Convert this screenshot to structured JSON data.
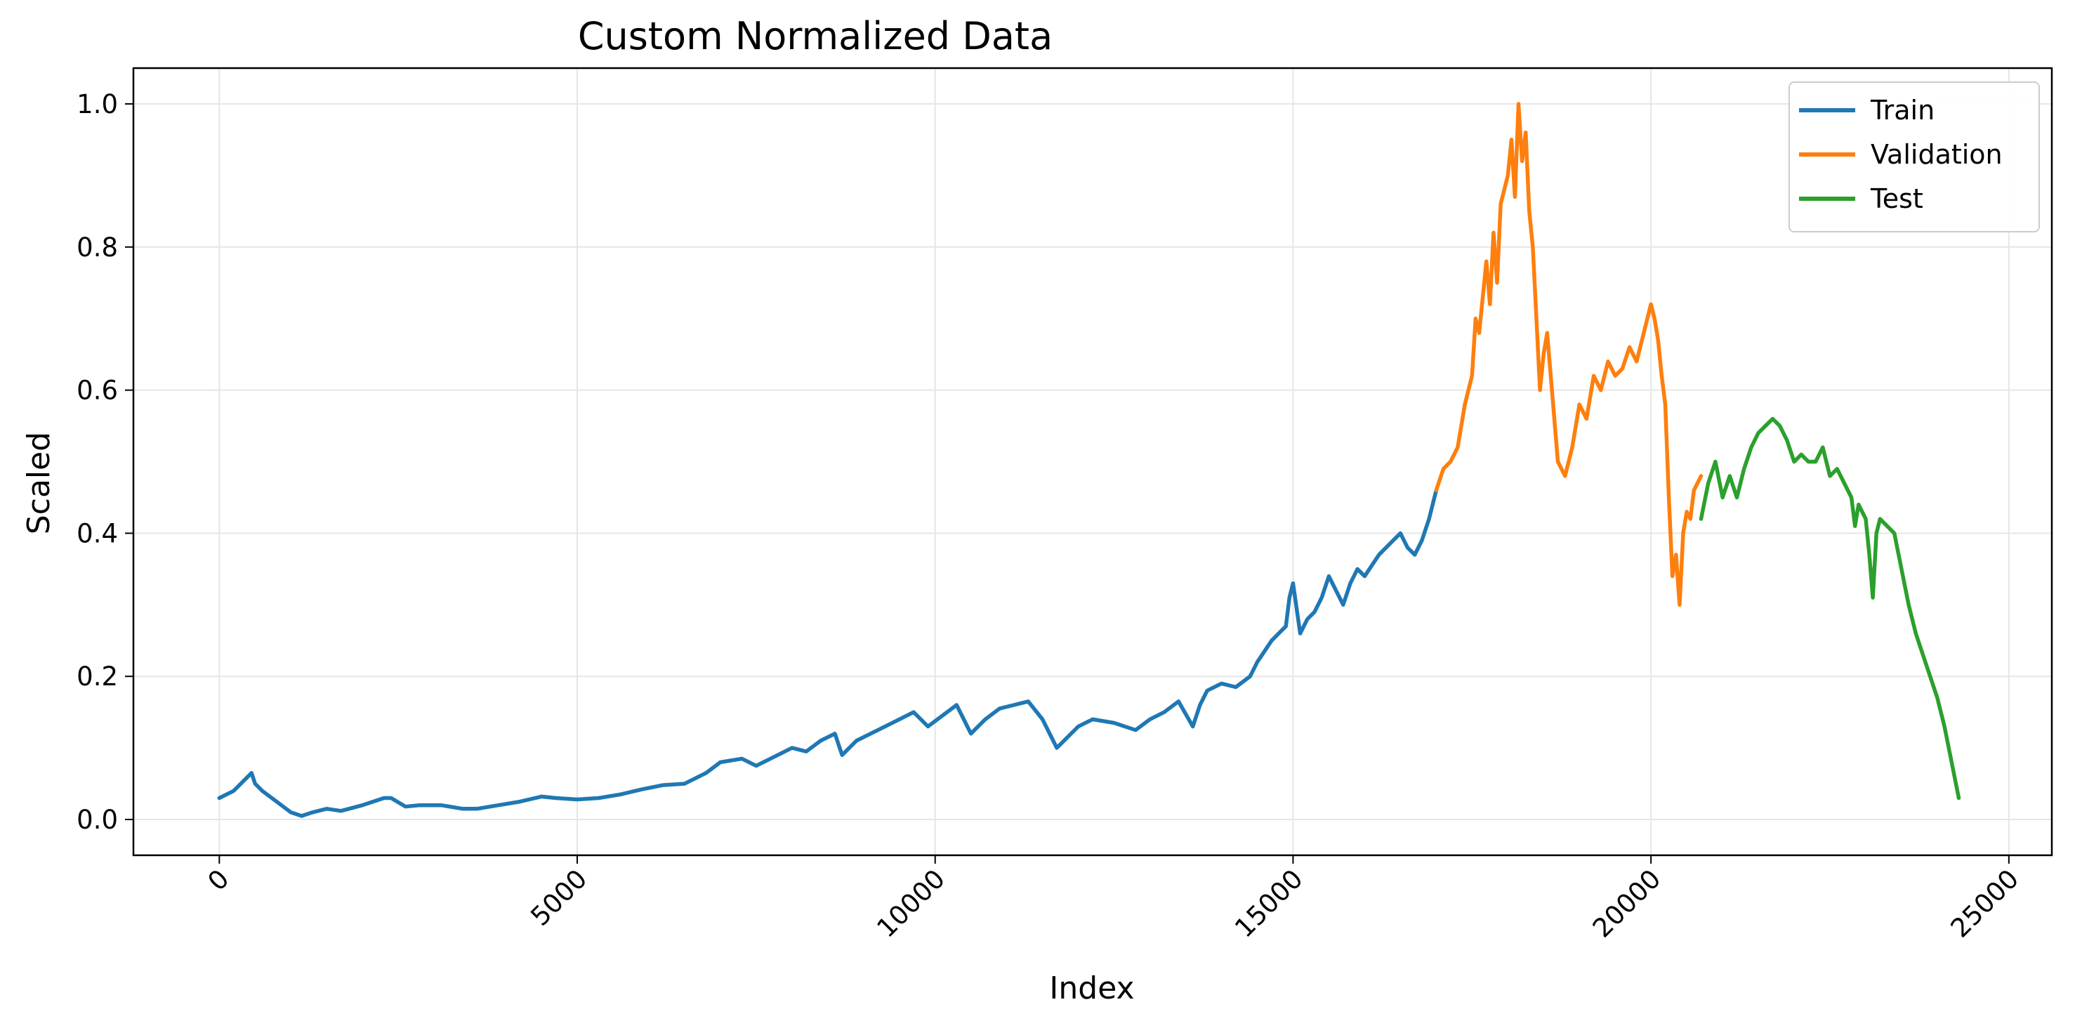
{
  "chart_data": {
    "type": "line",
    "title": "Custom Normalized Data",
    "xlabel": "Index",
    "ylabel": "Scaled",
    "xlim": [
      -1200,
      25600
    ],
    "ylim": [
      -0.05,
      1.05
    ],
    "x_ticks": [
      0,
      5000,
      10000,
      15000,
      20000,
      25000
    ],
    "x_tick_labels": [
      "0",
      "5000",
      "10000",
      "15000",
      "20000",
      "25000"
    ],
    "y_ticks": [
      0.0,
      0.2,
      0.4,
      0.6,
      0.8,
      1.0
    ],
    "y_tick_labels": [
      "0.0",
      "0.2",
      "0.4",
      "0.6",
      "0.8",
      "1.0"
    ],
    "grid": true,
    "legend_position": "top-right",
    "series": [
      {
        "name": "Train",
        "color": "#1f77b4",
        "x": [
          0,
          200,
          350,
          450,
          500,
          600,
          800,
          1000,
          1150,
          1300,
          1500,
          1700,
          2000,
          2300,
          2400,
          2600,
          2800,
          3100,
          3400,
          3600,
          3900,
          4200,
          4500,
          4700,
          5000,
          5300,
          5600,
          5900,
          6200,
          6500,
          6800,
          7000,
          7300,
          7500,
          7800,
          8000,
          8200,
          8400,
          8600,
          8700,
          8900,
          9200,
          9500,
          9700,
          9900,
          10100,
          10300,
          10500,
          10700,
          10900,
          11100,
          11300,
          11500,
          11700,
          11800,
          12000,
          12200,
          12500,
          12800,
          13000,
          13200,
          13400,
          13600,
          13700,
          13800,
          14000,
          14200,
          14400,
          14500,
          14700,
          14800,
          14900,
          14950,
          15000,
          15100,
          15200,
          15300,
          15400,
          15500,
          15600,
          15700,
          15800,
          15900,
          16000,
          16200,
          16400,
          16500,
          16600,
          16700,
          16800,
          16900,
          17000
        ],
        "y": [
          0.03,
          0.04,
          0.055,
          0.065,
          0.05,
          0.04,
          0.025,
          0.01,
          0.005,
          0.01,
          0.015,
          0.012,
          0.02,
          0.03,
          0.03,
          0.018,
          0.02,
          0.02,
          0.015,
          0.015,
          0.02,
          0.025,
          0.032,
          0.03,
          0.028,
          0.03,
          0.035,
          0.042,
          0.048,
          0.05,
          0.065,
          0.08,
          0.085,
          0.075,
          0.09,
          0.1,
          0.095,
          0.11,
          0.12,
          0.09,
          0.11,
          0.125,
          0.14,
          0.15,
          0.13,
          0.145,
          0.16,
          0.12,
          0.14,
          0.155,
          0.16,
          0.165,
          0.14,
          0.1,
          0.11,
          0.13,
          0.14,
          0.135,
          0.125,
          0.14,
          0.15,
          0.165,
          0.13,
          0.16,
          0.18,
          0.19,
          0.185,
          0.2,
          0.22,
          0.25,
          0.26,
          0.27,
          0.31,
          0.33,
          0.26,
          0.28,
          0.29,
          0.31,
          0.34,
          0.32,
          0.3,
          0.33,
          0.35,
          0.34,
          0.37,
          0.39,
          0.4,
          0.38,
          0.37,
          0.39,
          0.42,
          0.46
        ]
      },
      {
        "name": "Validation",
        "color": "#ff7f0e",
        "x": [
          17000,
          17100,
          17200,
          17300,
          17400,
          17500,
          17550,
          17600,
          17700,
          17750,
          17800,
          17850,
          17900,
          18000,
          18050,
          18100,
          18150,
          18200,
          18250,
          18300,
          18350,
          18400,
          18450,
          18500,
          18550,
          18600,
          18700,
          18800,
          18900,
          19000,
          19100,
          19200,
          19300,
          19400,
          19500,
          19600,
          19700,
          19800,
          19900,
          20000,
          20050,
          20100,
          20150,
          20200,
          20250,
          20300,
          20350,
          20400,
          20450,
          20500,
          20550,
          20600,
          20650,
          20700
        ],
        "y": [
          0.46,
          0.49,
          0.5,
          0.52,
          0.58,
          0.62,
          0.7,
          0.68,
          0.78,
          0.72,
          0.82,
          0.75,
          0.86,
          0.9,
          0.95,
          0.87,
          1.0,
          0.92,
          0.96,
          0.85,
          0.8,
          0.7,
          0.6,
          0.65,
          0.68,
          0.62,
          0.5,
          0.48,
          0.52,
          0.58,
          0.56,
          0.62,
          0.6,
          0.64,
          0.62,
          0.63,
          0.66,
          0.64,
          0.68,
          0.72,
          0.7,
          0.67,
          0.62,
          0.58,
          0.45,
          0.34,
          0.37,
          0.3,
          0.4,
          0.43,
          0.42,
          0.46,
          0.47,
          0.48
        ]
      },
      {
        "name": "Test",
        "color": "#2ca02c",
        "x": [
          20700,
          20800,
          20900,
          21000,
          21100,
          21200,
          21300,
          21400,
          21500,
          21600,
          21700,
          21800,
          21900,
          22000,
          22100,
          22200,
          22300,
          22400,
          22500,
          22600,
          22700,
          22800,
          22850,
          22900,
          23000,
          23050,
          23100,
          23150,
          23200,
          23300,
          23400,
          23500,
          23600,
          23700,
          23800,
          23900,
          24000,
          24100,
          24200,
          24300
        ],
        "y": [
          0.42,
          0.47,
          0.5,
          0.45,
          0.48,
          0.45,
          0.49,
          0.52,
          0.54,
          0.55,
          0.56,
          0.55,
          0.53,
          0.5,
          0.51,
          0.5,
          0.5,
          0.52,
          0.48,
          0.49,
          0.47,
          0.45,
          0.41,
          0.44,
          0.42,
          0.37,
          0.31,
          0.4,
          0.42,
          0.41,
          0.4,
          0.35,
          0.3,
          0.26,
          0.23,
          0.2,
          0.17,
          0.13,
          0.08,
          0.03
        ]
      }
    ]
  }
}
